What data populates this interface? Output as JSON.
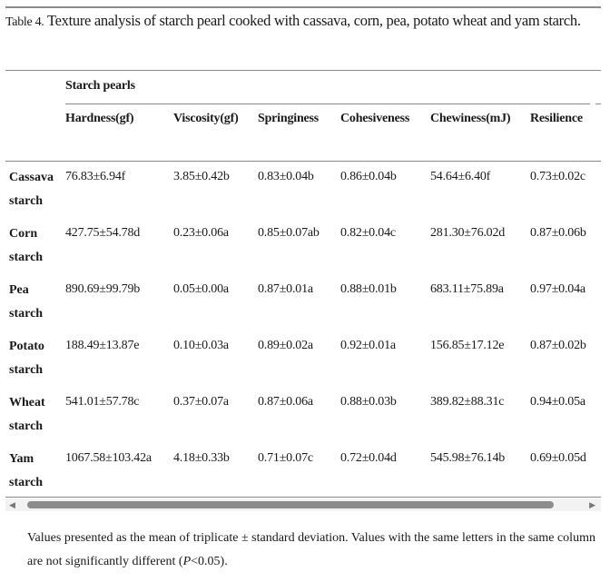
{
  "caption": {
    "label": "Table 4.",
    "text": " Texture analysis of starch pearl cooked with cassava, corn, pea, potato wheat and yam starch."
  },
  "table": {
    "group_header": "Starch pearls",
    "columns": [
      "Hardness(gf)",
      "Viscosity(gf)",
      "Springiness",
      "Cohesiveness",
      "Chewiness(mJ)",
      "Resilience"
    ],
    "rows": [
      {
        "name": [
          "Cassava",
          "starch"
        ],
        "values": [
          "76.83±6.94f",
          "3.85±0.42b",
          "0.83±0.04b",
          "0.86±0.04b",
          "54.64±6.40f",
          "0.73±0.02c"
        ]
      },
      {
        "name": [
          "Corn",
          "starch"
        ],
        "values": [
          "427.75±54.78d",
          "0.23±0.06a",
          "0.85±0.07ab",
          "0.82±0.04c",
          "281.30±76.02d",
          "0.87±0.06b"
        ]
      },
      {
        "name": [
          "Pea",
          "starch"
        ],
        "values": [
          "890.69±99.79b",
          "0.05±0.00a",
          "0.87±0.01a",
          "0.88±0.01b",
          "683.11±75.89a",
          "0.97±0.04a"
        ]
      },
      {
        "name": [
          "Potato",
          "starch"
        ],
        "values": [
          "188.49±13.87e",
          "0.10±0.03a",
          "0.89±0.02a",
          "0.92±0.01a",
          "156.85±17.12e",
          "0.87±0.02b"
        ]
      },
      {
        "name": [
          "Wheat",
          "starch"
        ],
        "values": [
          "541.01±57.78c",
          "0.37±0.07a",
          "0.87±0.06a",
          "0.88±0.03b",
          "389.82±88.31c",
          "0.94±0.05a"
        ]
      },
      {
        "name": [
          "Yam",
          "starch"
        ],
        "values": [
          "1067.58±103.42a",
          "4.18±0.33b",
          "0.71±0.07c",
          "0.72±0.04d",
          "545.98±76.14b",
          "0.69±0.05d"
        ]
      }
    ]
  },
  "footnote": {
    "before": "Values presented as the mean of triplicate ± standard deviation. Values with the same letters in the same column are not significantly different (",
    "italic": "P",
    "after": "<0.05)."
  },
  "scrollbar": {
    "left_arrow": "◀",
    "right_arrow": "▶"
  }
}
